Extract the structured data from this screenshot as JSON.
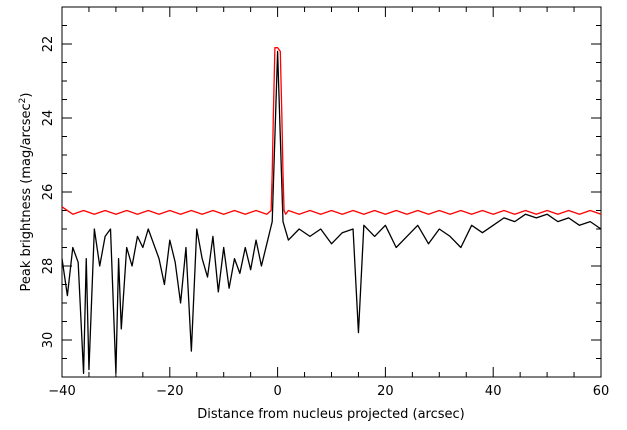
{
  "chart_data": {
    "type": "line",
    "title": "",
    "xlabel": "Distance from nucleus projected (arcsec)",
    "ylabel": {
      "main": "Peak brightness (mag/arcsec",
      "sup": "2",
      "close": ")"
    },
    "xlim": [
      -40,
      60
    ],
    "ylim": [
      31,
      21
    ],
    "y_inverted": true,
    "grid": false,
    "legend": "none",
    "x_ticks": [
      -40,
      -20,
      0,
      20,
      40,
      60
    ],
    "x_tick_labels": [
      "−40",
      "−20",
      "0",
      "20",
      "40",
      "60"
    ],
    "y_ticks": [
      22,
      24,
      26,
      28,
      30
    ],
    "y_tick_labels": [
      "22",
      "24",
      "26",
      "28",
      "30"
    ],
    "series": [
      {
        "color": "#ff0000",
        "x": [
          -40,
          -38,
          -36,
          -34,
          -32,
          -30,
          -28,
          -26,
          -24,
          -22,
          -20,
          -18,
          -16,
          -14,
          -12,
          -10,
          -8,
          -6,
          -4,
          -2,
          -1.2,
          -1,
          -0.8,
          -0.5,
          0,
          0.5,
          0.8,
          1,
          1.2,
          1.5,
          2,
          4,
          6,
          8,
          10,
          12,
          14,
          16,
          18,
          20,
          22,
          24,
          26,
          28,
          30,
          32,
          34,
          36,
          38,
          40,
          42,
          44,
          46,
          48,
          50,
          52,
          54,
          56,
          58,
          60
        ],
        "values": [
          26.4,
          26.6,
          26.5,
          26.6,
          26.5,
          26.6,
          26.5,
          26.6,
          26.5,
          26.6,
          26.5,
          26.6,
          26.5,
          26.6,
          26.5,
          26.6,
          26.5,
          26.6,
          26.5,
          26.6,
          26.5,
          25.5,
          24.0,
          22.1,
          22.1,
          22.2,
          24.0,
          25.5,
          26.5,
          26.6,
          26.5,
          26.6,
          26.5,
          26.6,
          26.5,
          26.6,
          26.5,
          26.6,
          26.5,
          26.6,
          26.5,
          26.6,
          26.5,
          26.6,
          26.5,
          26.6,
          26.5,
          26.6,
          26.5,
          26.6,
          26.5,
          26.6,
          26.5,
          26.6,
          26.5,
          26.6,
          26.5,
          26.6,
          26.5,
          26.6
        ]
      },
      {
        "color": "#000000",
        "x": [
          -40,
          -39,
          -38,
          -37,
          -36,
          -35.5,
          -35,
          -34,
          -33,
          -32,
          -31,
          -30,
          -29.5,
          -29,
          -28,
          -27,
          -26,
          -25,
          -24,
          -22,
          -21,
          -20,
          -19,
          -18,
          -17,
          -16,
          -15,
          -14,
          -13,
          -12,
          -11,
          -10,
          -9,
          -8,
          -7,
          -6,
          -5,
          -4,
          -3,
          -2,
          -1,
          -0.5,
          0,
          0.5,
          1,
          2,
          4,
          6,
          8,
          10,
          12,
          14,
          15,
          16,
          18,
          20,
          22,
          24,
          26,
          28,
          30,
          32,
          34,
          36,
          38,
          40,
          42,
          44,
          46,
          48,
          50,
          52,
          54,
          56,
          58,
          60
        ],
        "values": [
          27.8,
          28.8,
          27.5,
          27.9,
          30.9,
          27.8,
          30.8,
          27.0,
          28.0,
          27.2,
          27.0,
          30.9,
          27.8,
          29.7,
          27.5,
          28.0,
          27.2,
          27.5,
          27.0,
          27.8,
          28.5,
          27.3,
          27.9,
          29.0,
          27.5,
          30.3,
          27.0,
          27.8,
          28.3,
          27.2,
          28.7,
          27.5,
          28.6,
          27.8,
          28.2,
          27.5,
          28.1,
          27.3,
          28.0,
          27.4,
          26.8,
          24.5,
          22.2,
          24.5,
          26.8,
          27.3,
          27.0,
          27.2,
          27.0,
          27.4,
          27.1,
          27.0,
          29.8,
          26.9,
          27.2,
          26.9,
          27.5,
          27.2,
          26.9,
          27.4,
          27.0,
          27.2,
          27.5,
          26.9,
          27.1,
          26.9,
          26.7,
          26.8,
          26.6,
          26.7,
          26.6,
          26.8,
          26.7,
          26.9,
          26.8,
          27.0
        ]
      }
    ]
  }
}
